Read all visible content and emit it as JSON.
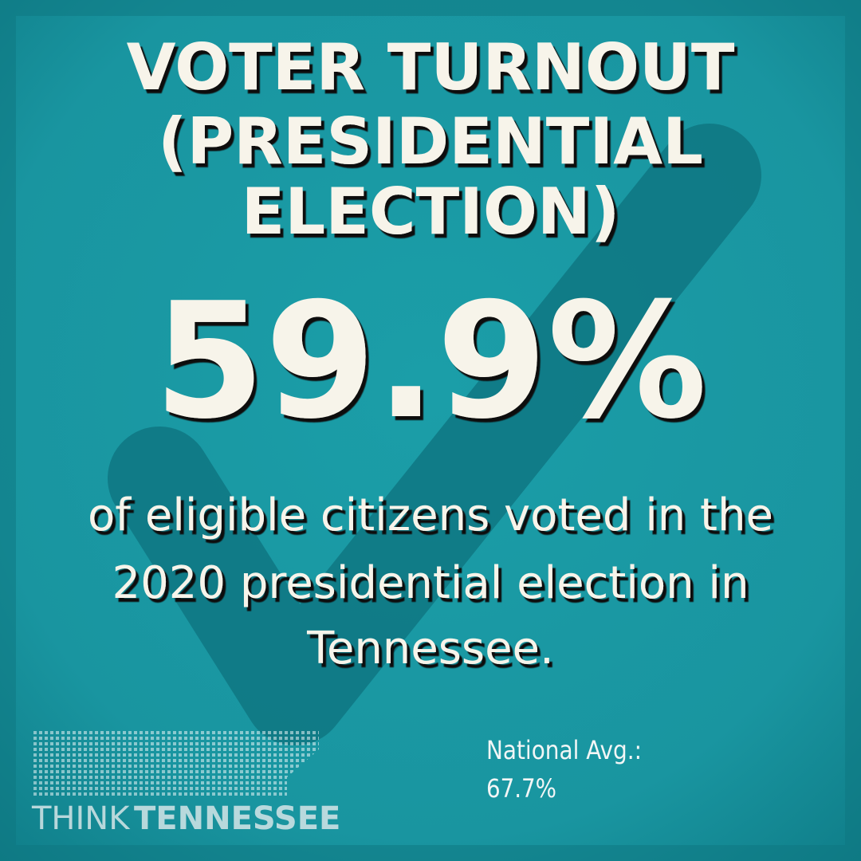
{
  "header": {
    "title_lines": [
      "VOTER TURNOUT",
      "(PRESIDENTIAL",
      "ELECTION)"
    ]
  },
  "stat": {
    "value": "59.9%",
    "description_lines": [
      "of eligible citizens voted in the",
      "2020 presidential election in",
      "Tennessee."
    ]
  },
  "national": {
    "label": "National Avg.:",
    "value": "67.7%"
  },
  "logo": {
    "think": "THINK",
    "tennessee": "TENNESSEE"
  }
}
